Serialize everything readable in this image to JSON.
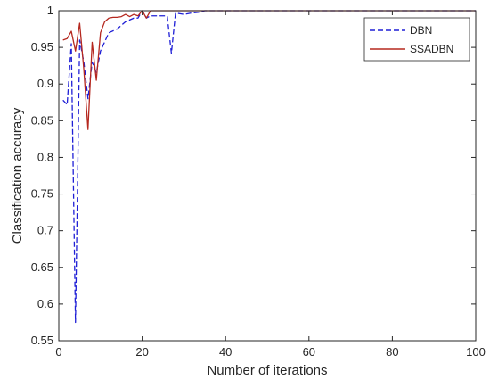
{
  "chart_data": {
    "type": "line",
    "title": "",
    "xlabel": "Number of iterations",
    "ylabel": "Classification accuracy",
    "xlim": [
      0,
      100
    ],
    "ylim": [
      0.55,
      1
    ],
    "xticks": [
      "0",
      "20",
      "40",
      "60",
      "80",
      "100"
    ],
    "yticks": [
      "0.55",
      "0.6",
      "0.65",
      "0.7",
      "0.75",
      "0.8",
      "0.85",
      "0.9",
      "0.95",
      "1"
    ],
    "grid": false,
    "legend_position": "top-right",
    "series": [
      {
        "name": "DBN",
        "color": "#1f1fd6",
        "style": "dashed",
        "x": [
          1,
          2,
          3,
          4,
          5,
          6,
          7,
          8,
          9,
          10,
          12,
          14,
          16,
          18,
          19,
          20,
          21,
          22,
          24,
          26,
          27,
          28,
          30,
          32,
          34,
          35,
          36,
          40,
          60,
          80,
          100
        ],
        "y": [
          0.878,
          0.872,
          0.955,
          0.575,
          0.96,
          0.93,
          0.88,
          0.93,
          0.915,
          0.945,
          0.97,
          0.975,
          0.985,
          0.99,
          0.99,
          1.0,
          0.99,
          0.993,
          0.993,
          0.993,
          0.942,
          0.997,
          0.995,
          0.997,
          0.998,
          1.0,
          1.0,
          1.0,
          1.0,
          1.0,
          1.0
        ]
      },
      {
        "name": "SSADBN",
        "color": "#b5281f",
        "style": "solid",
        "x": [
          1,
          2,
          3,
          4,
          5,
          6,
          7,
          8,
          9,
          10,
          11,
          12,
          13,
          14,
          15,
          16,
          17,
          18,
          19,
          20,
          21,
          22,
          24,
          30,
          40,
          60,
          80,
          100
        ],
        "y": [
          0.96,
          0.962,
          0.972,
          0.945,
          0.983,
          0.92,
          0.838,
          0.957,
          0.905,
          0.97,
          0.985,
          0.99,
          0.991,
          0.991,
          0.992,
          0.995,
          0.992,
          0.995,
          0.993,
          1.0,
          0.99,
          1.0,
          1.0,
          1.0,
          1.0,
          1.0,
          1.0,
          1.0
        ]
      }
    ]
  }
}
